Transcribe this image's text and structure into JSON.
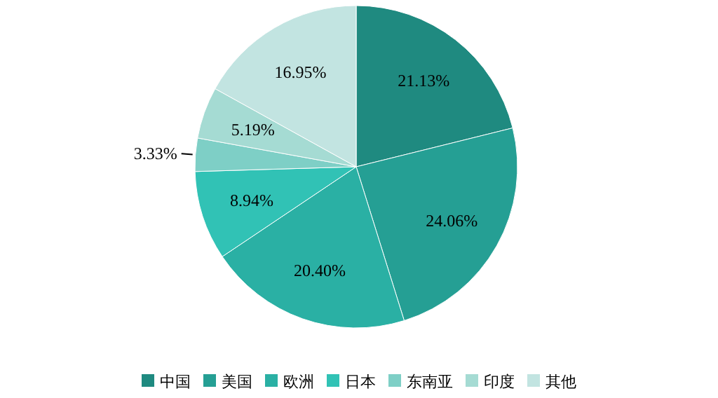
{
  "chart_data": {
    "type": "pie",
    "categories": [
      "中国",
      "美国",
      "欧洲",
      "日本",
      "东南亚",
      "印度",
      "其他"
    ],
    "values": [
      21.13,
      24.06,
      20.4,
      8.94,
      3.33,
      5.19,
      16.95
    ],
    "value_labels": [
      "21.13%",
      "24.06%",
      "20.40%",
      "8.94%",
      "3.33%",
      "5.19%",
      "16.95%"
    ],
    "colors": [
      "#1f8a80",
      "#259f94",
      "#2ab0a4",
      "#31c2b5",
      "#7ecfc6",
      "#a5dbd3",
      "#c2e4e1"
    ],
    "legend": "bottom"
  }
}
